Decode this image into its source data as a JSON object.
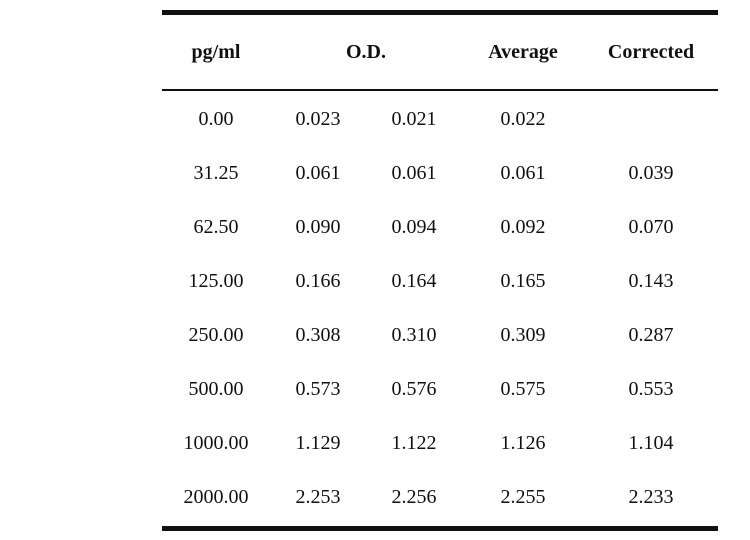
{
  "table": {
    "headers": {
      "concentration": "pg/ml",
      "od": "O.D.",
      "average": "Average",
      "corrected": "Corrected"
    },
    "rows": [
      {
        "conc": "0.00",
        "od1": "0.023",
        "od2": "0.021",
        "avg": "0.022",
        "corr": ""
      },
      {
        "conc": "31.25",
        "od1": "0.061",
        "od2": "0.061",
        "avg": "0.061",
        "corr": "0.039"
      },
      {
        "conc": "62.50",
        "od1": "0.090",
        "od2": "0.094",
        "avg": "0.092",
        "corr": "0.070"
      },
      {
        "conc": "125.00",
        "od1": "0.166",
        "od2": "0.164",
        "avg": "0.165",
        "corr": "0.143"
      },
      {
        "conc": "250.00",
        "od1": "0.308",
        "od2": "0.310",
        "avg": "0.309",
        "corr": "0.287"
      },
      {
        "conc": "500.00",
        "od1": "0.573",
        "od2": "0.576",
        "avg": "0.575",
        "corr": "0.553"
      },
      {
        "conc": "1000.00",
        "od1": "1.129",
        "od2": "1.122",
        "avg": "1.126",
        "corr": "1.104"
      },
      {
        "conc": "2000.00",
        "od1": "2.253",
        "od2": "2.256",
        "avg": "2.255",
        "corr": "2.233"
      }
    ]
  }
}
